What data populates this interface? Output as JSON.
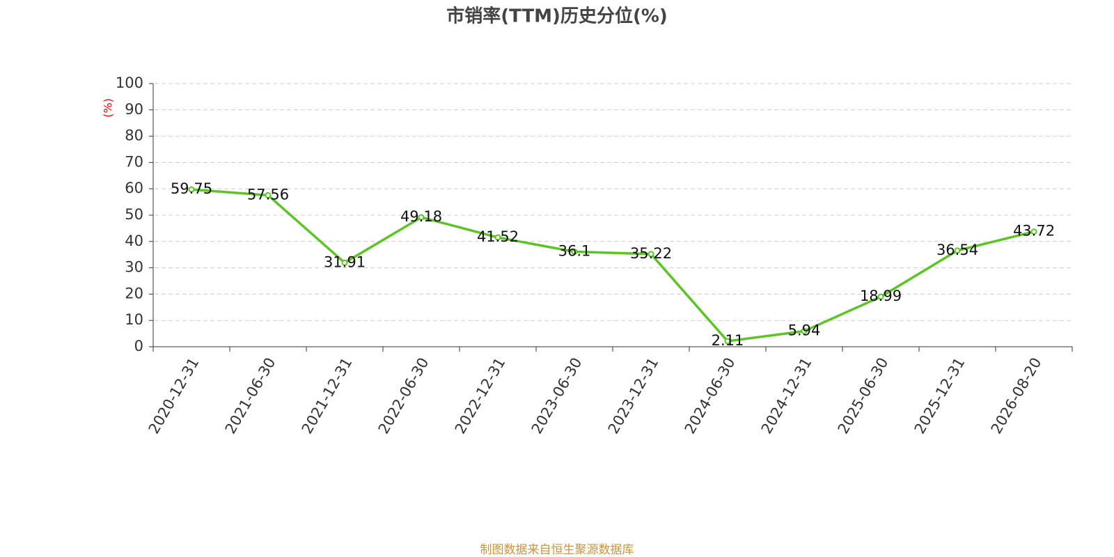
{
  "chart_data": {
    "type": "line",
    "title": "市销率(TTM)历史分位(%)",
    "y_label": "(%)",
    "categories": [
      "2020-12-31",
      "2021-06-30",
      "2021-12-31",
      "2022-06-30",
      "2022-12-31",
      "2023-06-30",
      "2023-12-31",
      "2024-06-30",
      "2024-12-31",
      "2025-06-30",
      "2025-12-31",
      "2026-08-20"
    ],
    "values": [
      59.75,
      57.56,
      31.91,
      49.18,
      41.52,
      36.1,
      35.22,
      2.11,
      5.94,
      18.99,
      36.54,
      43.72
    ],
    "color": "#5cc425",
    "ylim": [
      0,
      100
    ],
    "yticks": [
      0,
      10,
      20,
      30,
      40,
      50,
      60,
      70,
      80,
      90,
      100
    ],
    "grid": true,
    "source": "制图数据来自恒生聚源数据库"
  }
}
